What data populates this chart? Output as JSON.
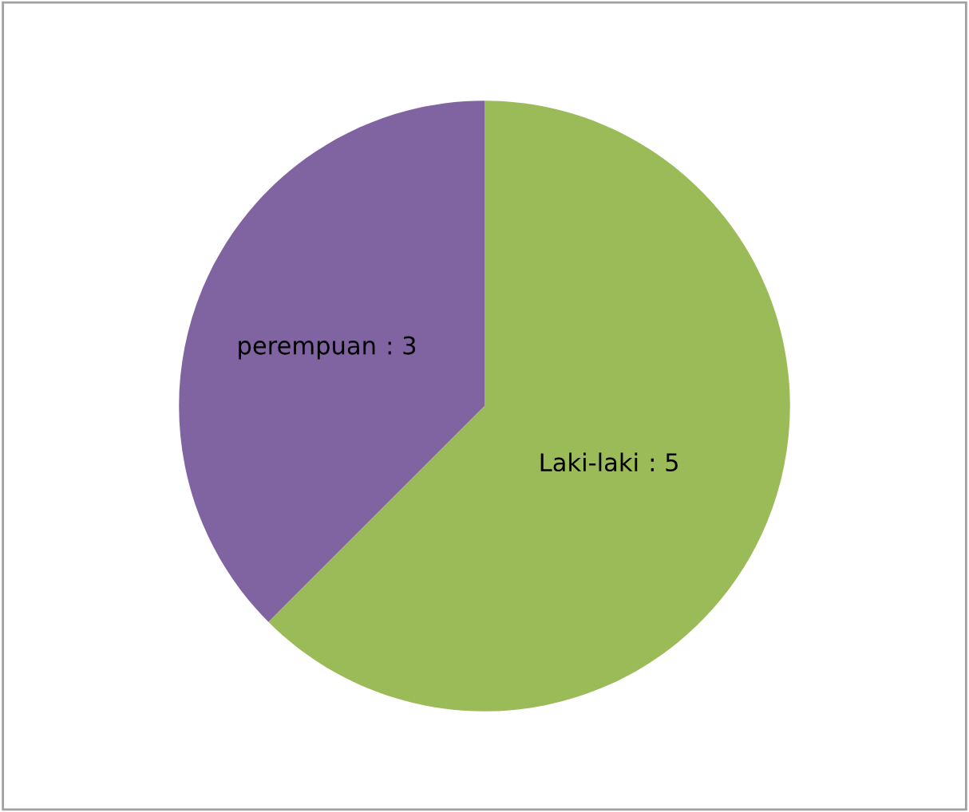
{
  "chart_data": {
    "type": "pie",
    "categories": [
      "Laki-laki",
      "perempuan"
    ],
    "values": [
      5,
      3
    ],
    "colors": [
      "#9bbb59",
      "#8064a2"
    ],
    "value_labels": [
      ": 5",
      ": 3"
    ],
    "legend": false
  }
}
